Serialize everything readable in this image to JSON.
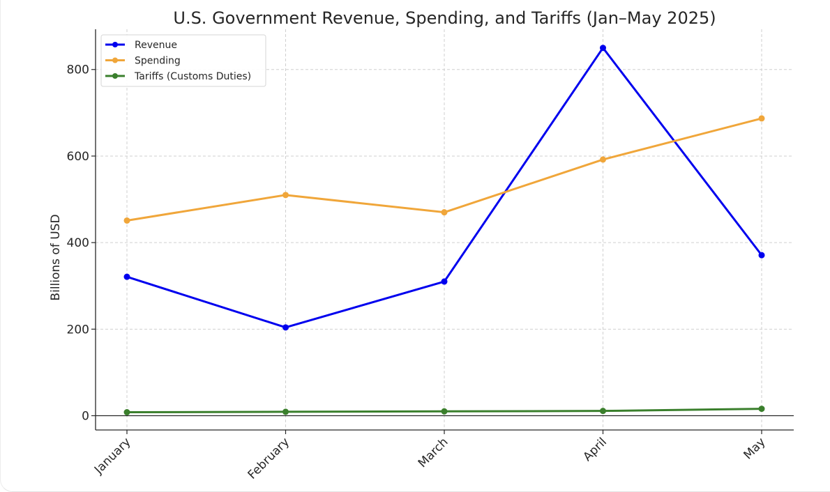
{
  "chart_data": {
    "type": "line",
    "title": "U.S. Government Revenue, Spending, and Tariffs (Jan–May 2025)",
    "xlabel": "",
    "ylabel": "Billions of USD",
    "categories": [
      "January",
      "February",
      "March",
      "April",
      "May"
    ],
    "ylim": [
      -33,
      893
    ],
    "yticks": [
      0,
      200,
      400,
      600,
      800
    ],
    "grid": true,
    "legend_position": "top-left",
    "series": [
      {
        "name": "Revenue",
        "color": "#0000ee",
        "values": [
          321,
          204,
          310,
          850,
          371
        ]
      },
      {
        "name": "Spending",
        "color": "#f0a63a",
        "values": [
          451,
          510,
          470,
          592,
          687
        ]
      },
      {
        "name": "Tariffs (Customs Duties)",
        "color": "#3a7f2c",
        "values": [
          8,
          9,
          10,
          11,
          16
        ]
      }
    ]
  }
}
